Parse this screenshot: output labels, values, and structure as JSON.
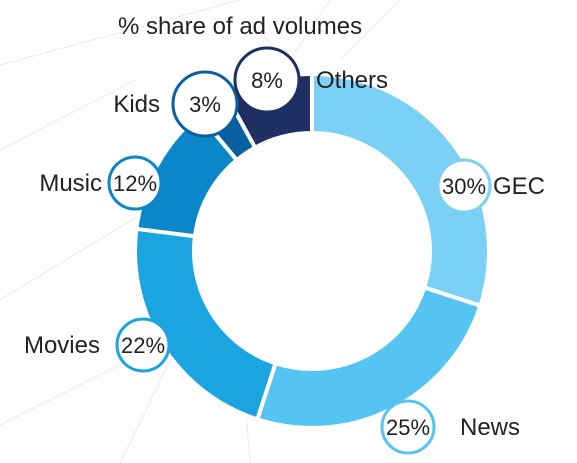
{
  "chart_data": {
    "type": "pie",
    "title": "% share of ad volumes",
    "series": [
      {
        "name": "GEC",
        "value": 30,
        "label": "30%",
        "color": "#7ad0f5"
      },
      {
        "name": "News",
        "value": 25,
        "label": "25%",
        "color": "#55c4f2"
      },
      {
        "name": "Movies",
        "value": 22,
        "label": "22%",
        "color": "#1aa4e0"
      },
      {
        "name": "Music",
        "value": 12,
        "label": "12%",
        "color": "#0a86c9"
      },
      {
        "name": "Kids",
        "value": 3,
        "label": "3%",
        "color": "#0a5f9e"
      },
      {
        "name": "Others",
        "value": 8,
        "label": "8%",
        "color": "#1f2e63"
      }
    ]
  },
  "colors": {
    "background_lines": "#e6e6e6",
    "circle_fill": "#ffffff",
    "text": "#222222"
  }
}
